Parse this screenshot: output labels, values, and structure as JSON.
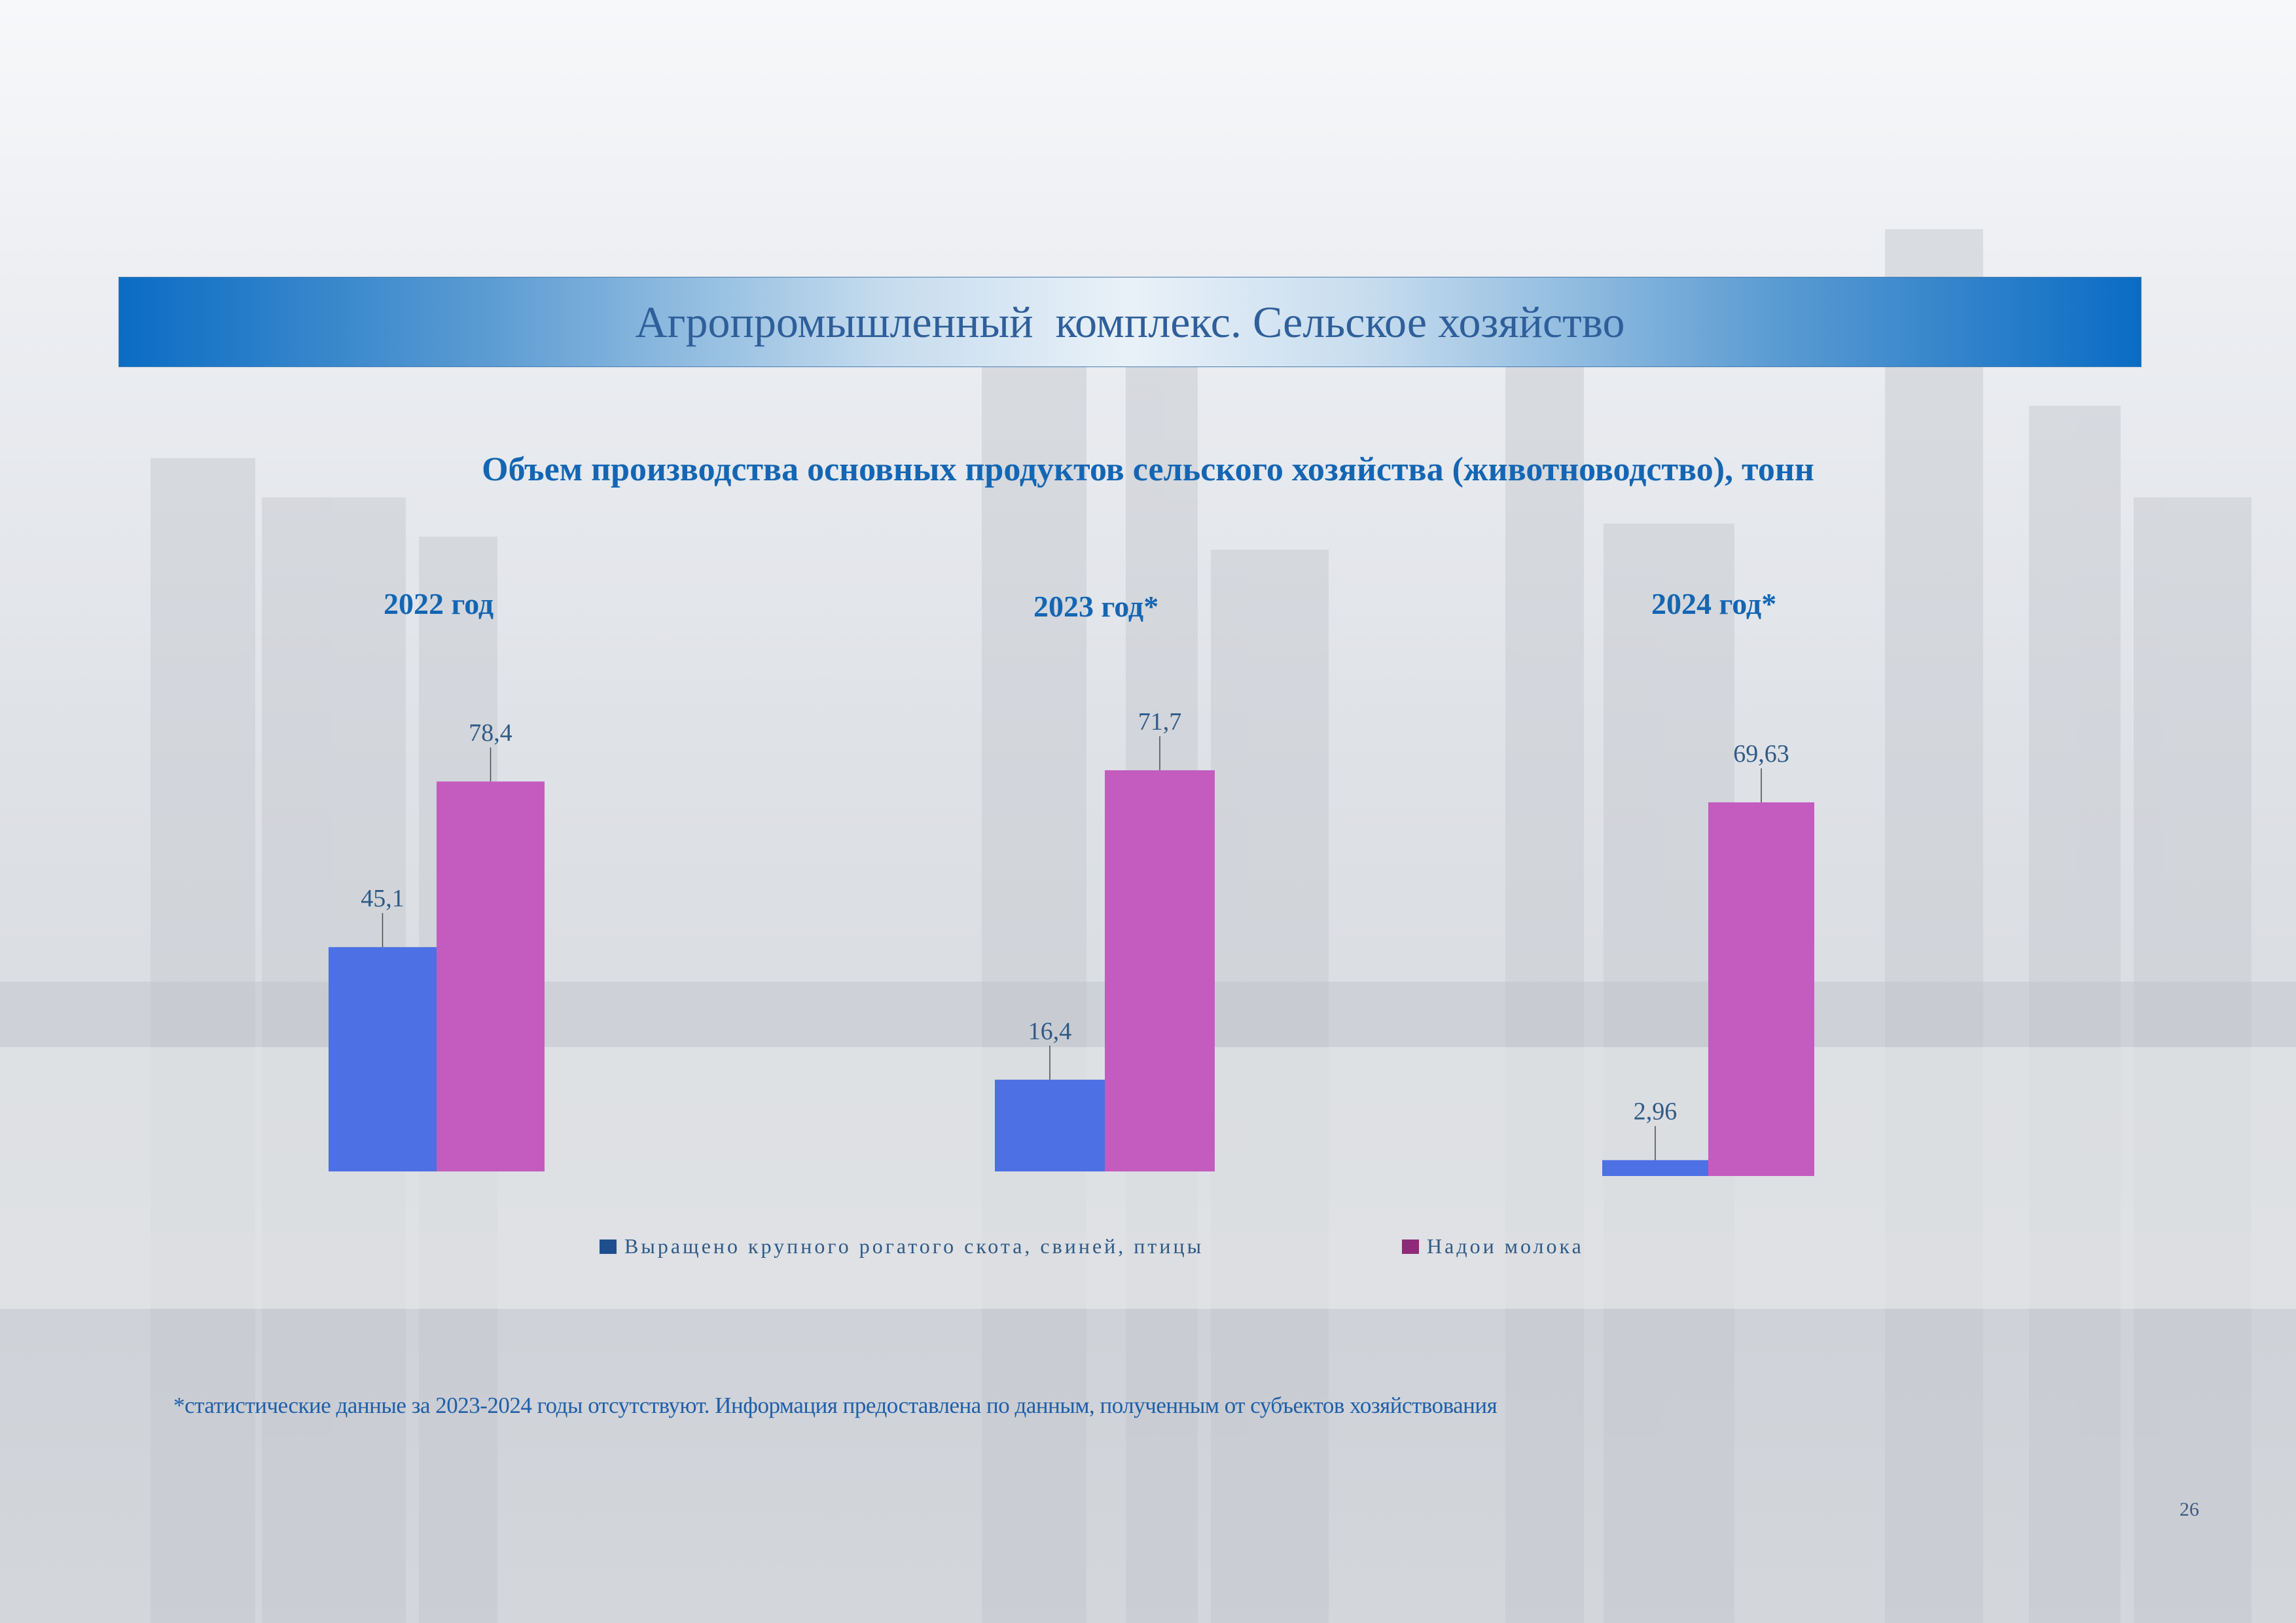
{
  "banner": {
    "title": "Агропромышленный  комплекс. Сельское хозяйство"
  },
  "subtitle": "Объем производства основных продуктов сельского хозяйства (животноводство), тонн",
  "years": [
    "2022 год",
    "2023 год*",
    "2024 год*"
  ],
  "legend": {
    "series1": "Выращено крупного рогатого скота, свиней, птицы",
    "series2": "Надои молока"
  },
  "footnote": "*статистические данные за 2023-2024 годы отсутствуют. Информация предоставлена по данным, полученным от субъектов хозяйствования",
  "page_number": "26",
  "colors": {
    "banner_blue": "#0a6cc4",
    "title_text": "#1466b3",
    "bar_cattle": "#4d70e4",
    "bar_milk": "#c45cc0",
    "legend_cattle": "#1f4e8c",
    "legend_milk": "#8e2a78"
  },
  "chart_data": [
    {
      "type": "bar",
      "title": "2022 год",
      "categories": [
        "2022 год"
      ],
      "series": [
        {
          "name": "Выращено крупного рогатого скота, свиней, птицы",
          "values": [
            45.1
          ],
          "label": "45,1"
        },
        {
          "name": "Надои молока",
          "values": [
            78.4
          ],
          "label": "78,4"
        }
      ]
    },
    {
      "type": "bar",
      "title": "2023 год*",
      "categories": [
        "2023 год*"
      ],
      "series": [
        {
          "name": "Выращено крупного рогатого скота, свиней, птицы",
          "values": [
            16.4
          ],
          "label": "16,4"
        },
        {
          "name": "Надои молока",
          "values": [
            71.7
          ],
          "label": "71,7"
        }
      ]
    },
    {
      "type": "bar",
      "title": "2024 год*",
      "categories": [
        "2024 год*"
      ],
      "series": [
        {
          "name": "Выращено крупного рогатого скота, свиней, птицы",
          "values": [
            2.96
          ],
          "label": "2,96"
        },
        {
          "name": "Надои молока",
          "values": [
            69.63
          ],
          "label": "69,63"
        }
      ]
    }
  ]
}
